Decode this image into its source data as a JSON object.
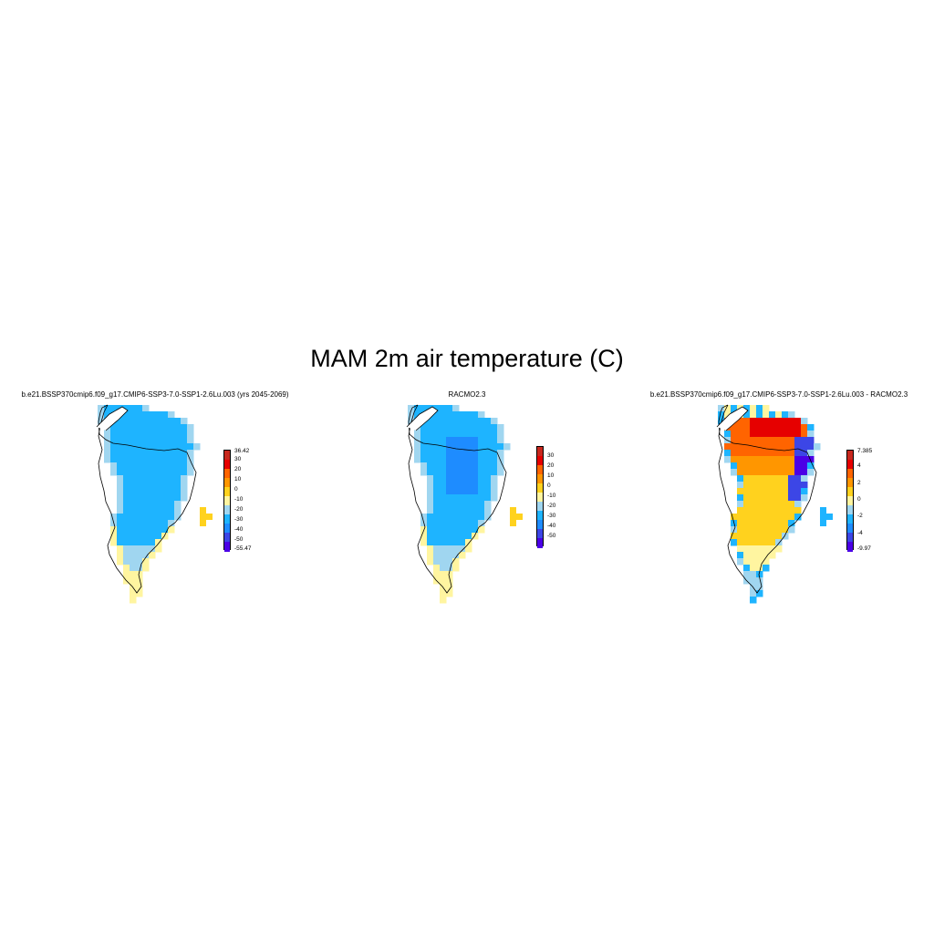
{
  "title": "MAM 2m air temperature (C)",
  "panels": [
    {
      "id": "model",
      "subtitle": "b.e21.BSSP370cmip6.f09_g17.CMIP6-SSP3-7.0-SSP1-2.6Lu.003 (yrs 2045-2069)",
      "colorbar": {
        "max_label": "36.42",
        "min_label": "-55.47",
        "ticks": [
          "30",
          "20",
          "10",
          "0",
          "-10",
          "-20",
          "-30",
          "-40",
          "-50"
        ],
        "colors": [
          "#c8281e",
          "#e60000",
          "#ff6400",
          "#ff9600",
          "#ffd21e",
          "#fff5a0",
          "#a0d6f0",
          "#1eb4ff",
          "#1e8cff",
          "#3c46e6",
          "#4b00e6"
        ]
      },
      "field": "absolute"
    },
    {
      "id": "obs",
      "subtitle": "RACMO2.3",
      "colorbar": {
        "max_label": "",
        "min_label": "",
        "ticks": [
          "30",
          "20",
          "10",
          "0",
          "-10",
          "-20",
          "-30",
          "-40",
          "-50"
        ],
        "colors": [
          "#c8281e",
          "#e60000",
          "#ff6400",
          "#ff9600",
          "#ffd21e",
          "#fff5a0",
          "#a0d6f0",
          "#1eb4ff",
          "#1e8cff",
          "#3c46e6",
          "#4b00e6"
        ]
      },
      "field": "absolute"
    },
    {
      "id": "diff",
      "subtitle": "b.e21.BSSP370cmip6.f09_g17.CMIP6-SSP3-7.0-SSP1-2.6Lu.003 - RACMO2.3",
      "colorbar": {
        "max_label": "7.385",
        "min_label": "-9.97",
        "ticks": [
          "4",
          "2",
          "0",
          "-2",
          "-4"
        ],
        "colors": [
          "#c8281e",
          "#e60000",
          "#ff6400",
          "#ff9600",
          "#ffd21e",
          "#fff5a0",
          "#a0d6f0",
          "#1eb4ff",
          "#1e8cff",
          "#3c46e6",
          "#4b00e6"
        ]
      },
      "field": "difference"
    }
  ]
}
